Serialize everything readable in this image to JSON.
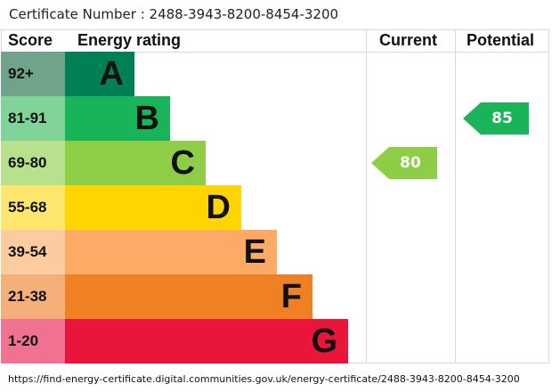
{
  "certificate": "Certificate Number : 2488-3943-8200-8454-3200",
  "headers": {
    "score": "Score",
    "rating": "Energy rating",
    "current": "Current",
    "potential": "Potential"
  },
  "bands": [
    {
      "score": "92+",
      "letter": "A",
      "color": "#008054",
      "score_color": "#6fa48a"
    },
    {
      "score": "81-91",
      "letter": "B",
      "color": "#19b459",
      "score_color": "#80d49a"
    },
    {
      "score": "69-80",
      "letter": "C",
      "color": "#8dce46",
      "score_color": "#b9e08c"
    },
    {
      "score": "55-68",
      "letter": "D",
      "color": "#ffd500",
      "score_color": "#ffe66e"
    },
    {
      "score": "39-54",
      "letter": "E",
      "color": "#fcaa65",
      "score_color": "#fdcba0"
    },
    {
      "score": "21-38",
      "letter": "F",
      "color": "#ef8023",
      "score_color": "#f5b07a"
    },
    {
      "score": "1-20",
      "letter": "G",
      "color": "#e9153b",
      "score_color": "#f07290"
    }
  ],
  "current": {
    "value": "80",
    "band": "C",
    "color": "#8dce46"
  },
  "potential": {
    "value": "85",
    "band": "B",
    "color": "#19b459"
  },
  "url": "https://find-energy-certificate.digital.communities.gov.uk/energy-certificate/2488-3943-8200-8454-3200"
}
